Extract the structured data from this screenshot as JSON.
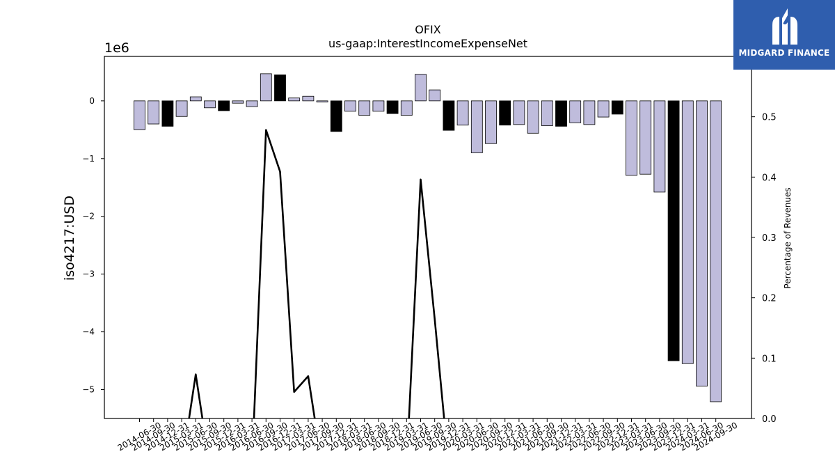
{
  "chart_data": {
    "type": "bar",
    "title": "OFIX",
    "subtitle": "us-gaap:InterestIncomeExpenseNet",
    "ylabel": "iso4217:USD",
    "y_offset_label": "1e6",
    "y2label": "Percentage of Revenues",
    "ylim": [
      -5.5,
      0.77
    ],
    "y2lim": [
      0.0,
      0.6
    ],
    "yticks": [
      {
        "v": 0,
        "label": "0"
      },
      {
        "v": -1,
        "label": "−1"
      },
      {
        "v": -2,
        "label": "−2"
      },
      {
        "v": -3,
        "label": "−3"
      },
      {
        "v": -4,
        "label": "−4"
      },
      {
        "v": -5,
        "label": "−5"
      }
    ],
    "y2ticks": [
      {
        "v": 0.0,
        "label": "0.0"
      },
      {
        "v": 0.1,
        "label": "0.1"
      },
      {
        "v": 0.2,
        "label": "0.2"
      },
      {
        "v": 0.3,
        "label": "0.3"
      },
      {
        "v": 0.4,
        "label": "0.4"
      },
      {
        "v": 0.5,
        "label": "0.5"
      },
      {
        "v": 0.6,
        "label": "0.6"
      }
    ],
    "categories": [
      "2014-06-30",
      "2014-09-30",
      "2014-12-31",
      "2015-03-31",
      "2015-06-30",
      "2015-09-30",
      "2015-12-31",
      "2016-03-31",
      "2016-06-30",
      "2016-09-30",
      "2016-12-31",
      "2017-03-31",
      "2017-06-30",
      "2017-09-30",
      "2017-12-31",
      "2018-03-31",
      "2018-06-30",
      "2018-09-30",
      "2018-12-31",
      "2019-03-31",
      "2019-06-30",
      "2019-09-30",
      "2019-12-31",
      "2020-03-31",
      "2020-06-30",
      "2020-09-30",
      "2020-12-31",
      "2021-03-31",
      "2021-06-30",
      "2021-09-30",
      "2021-12-31",
      "2022-03-31",
      "2022-06-30",
      "2022-09-30",
      "2022-12-31",
      "2023-03-31",
      "2023-06-30",
      "2023-09-30",
      "2023-12-31",
      "2024-03-31",
      "2024-06-30",
      "2024-09-30"
    ],
    "values": [
      -0.5,
      -0.4,
      -0.44,
      -0.27,
      0.07,
      -0.12,
      -0.17,
      -0.04,
      -0.1,
      0.47,
      0.45,
      0.05,
      0.08,
      -0.02,
      -0.53,
      -0.18,
      -0.25,
      -0.18,
      -0.22,
      -0.25,
      0.46,
      0.19,
      -0.51,
      -0.42,
      -0.9,
      -0.74,
      -0.42,
      -0.41,
      -0.56,
      -0.43,
      -0.44,
      -0.38,
      -0.41,
      -0.28,
      -0.23,
      -1.29,
      -1.27,
      -1.58,
      -4.5,
      -4.55,
      -4.94,
      -5.21
    ],
    "highlight": [
      false,
      false,
      true,
      false,
      false,
      false,
      true,
      false,
      false,
      false,
      true,
      false,
      false,
      false,
      true,
      false,
      false,
      false,
      true,
      false,
      false,
      false,
      true,
      false,
      false,
      false,
      true,
      false,
      false,
      false,
      true,
      false,
      false,
      false,
      true,
      false,
      false,
      false,
      true,
      false,
      false,
      false
    ],
    "line_series": [
      {
        "values": [
          null,
          null,
          null,
          null,
          0.073,
          null,
          null,
          null,
          null,
          0.478,
          0.409,
          0.044,
          0.07,
          null,
          null,
          null,
          null,
          null,
          null,
          null,
          0.396,
          0.165,
          null,
          null,
          null,
          null,
          null,
          null,
          null,
          null,
          null,
          null,
          null,
          null,
          null,
          null,
          null,
          null,
          null,
          null,
          null,
          null
        ]
      }
    ],
    "colors": {
      "bar": "#bfbcdc",
      "bar_highlight": "#000000",
      "line": "#000000"
    },
    "grid": false
  },
  "logo": {
    "text": "MIDGARD FINANCE",
    "background": "#2f5eae"
  }
}
